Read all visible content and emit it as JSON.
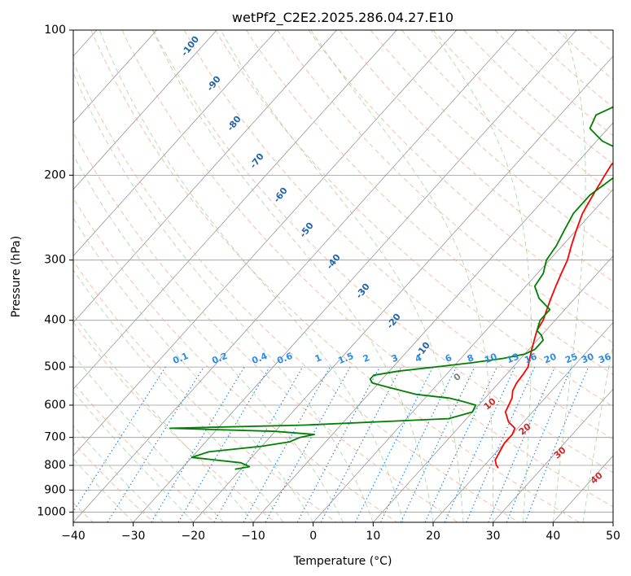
{
  "chart_data": {
    "type": "line",
    "diagram": "skew-T log-P",
    "title": "wetPf2_C2E2.2025.286.04.27.E10",
    "xlabel": "Temperature (°C)",
    "ylabel": "Pressure (hPa)",
    "xlim": [
      -40,
      50
    ],
    "ylim": [
      1050,
      100
    ],
    "y_scale": "log",
    "x_ticks": [
      -40,
      -30,
      -20,
      -10,
      0,
      10,
      20,
      30,
      40,
      50
    ],
    "y_ticks": [
      100,
      200,
      300,
      400,
      500,
      600,
      700,
      800,
      900,
      1000
    ],
    "grid": true,
    "series": [
      {
        "color": "#ff0000",
        "p": [
          810,
          800,
          780,
          750,
          720,
          690,
          670,
          650,
          620,
          600,
          580,
          560,
          540,
          520,
          500,
          480,
          460,
          440,
          420,
          400,
          380,
          360,
          340,
          320,
          300,
          280,
          260,
          240,
          220,
          200,
          190,
          180,
          175,
          165,
          155,
          145,
          135,
          125,
          115,
          105,
          100
        ],
        "t": [
          22.7,
          22,
          21,
          20.5,
          20,
          20,
          19.5,
          17.5,
          15.5,
          15,
          14.5,
          13.5,
          13,
          12.8,
          12.5,
          11.5,
          10.5,
          9.5,
          8.5,
          8,
          7,
          6,
          5,
          4,
          3,
          1.5,
          0,
          -1.5,
          -2.5,
          -3.5,
          -4,
          -3,
          0,
          5,
          5,
          4,
          4,
          5,
          6,
          7,
          7.5
        ]
      },
      {
        "color": "#008000",
        "p": [
          815,
          805,
          790,
          770,
          750,
          730,
          715,
          700,
          690,
          680,
          670,
          660,
          640,
          620,
          600,
          590,
          580,
          570,
          560,
          550,
          540,
          530,
          525,
          520,
          510,
          500,
          490,
          480,
          470,
          460,
          450,
          440,
          430,
          420,
          400,
          380,
          360,
          340,
          320,
          300,
          280,
          260,
          240,
          220,
          200,
          190,
          180,
          175,
          170,
          165,
          160,
          150,
          140,
          130,
          120,
          110,
          100
        ],
        "t": [
          -21,
          -19,
          -21,
          -30,
          -28,
          -20,
          -16,
          -15,
          -13,
          -20,
          -38,
          -16,
          7,
          10,
          9.5,
          7,
          4,
          -2,
          -5,
          -8,
          -11,
          -12,
          -12,
          -12,
          -8.5,
          -3,
          2.5,
          7,
          10,
          11,
          11,
          11,
          10,
          8.5,
          7.5,
          7.5,
          4,
          1.5,
          1,
          -0.5,
          -1,
          -2,
          -3,
          -3,
          -1.5,
          -1.5,
          -3,
          -6,
          -9,
          -11,
          -13,
          -14,
          -11,
          -8,
          -5.5,
          -2,
          0
        ]
      }
    ],
    "dry_adiabat_labels": [
      "-100",
      "-90",
      "-80",
      "-70",
      "-60",
      "-50",
      "-40",
      "-30",
      "-20",
      "-10"
    ],
    "moist_adiabat_labels": [
      "0",
      "10",
      "20",
      "30",
      "40"
    ],
    "mixing_ratio_labels": [
      "0.1",
      "0.2",
      "0.4",
      "0.6",
      "1",
      "1.5",
      "2",
      "3",
      "4",
      "6",
      "8",
      "10",
      "13",
      "16",
      "20",
      "25",
      "30",
      "36"
    ],
    "colors": {
      "dry_adiabat": "#f4a582",
      "dry_adiabat_label": "#2166ac",
      "moist_adiabat": "#7fbf7b",
      "moist_adiabat_label": "#d62728",
      "mixing_ratio": "#2b8ce6",
      "isotherm": "#999999",
      "isobar": "#999999",
      "zero_isotherm_label": "#808080",
      "curved_isotherm": "#d2b48c"
    }
  }
}
